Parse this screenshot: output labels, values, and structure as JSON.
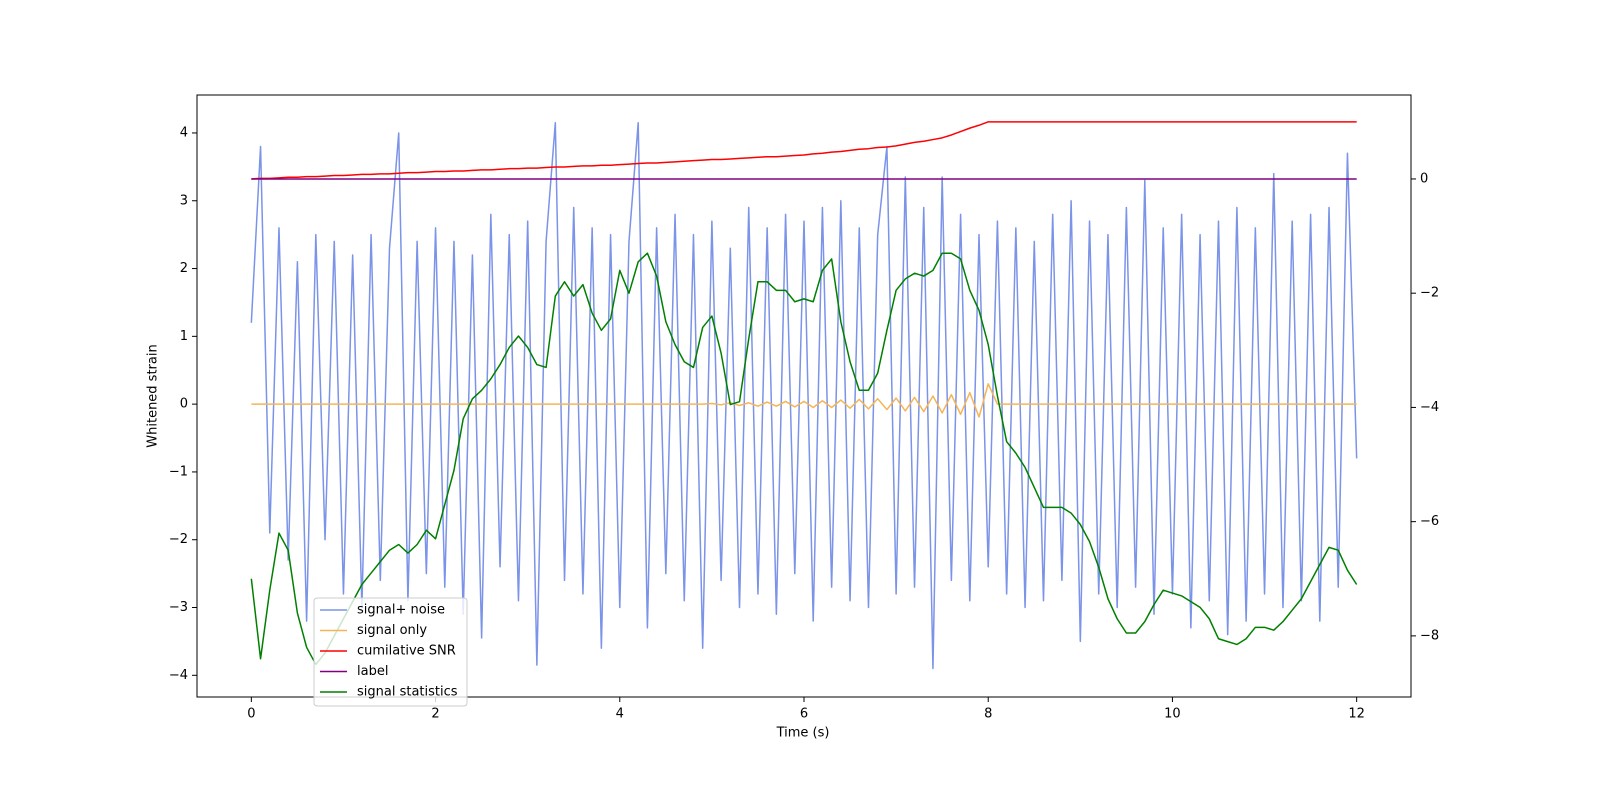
{
  "chart_data": {
    "type": "line",
    "x_label": "Time (s)",
    "y_label": "Whitened strain",
    "xlim": [
      -0.59,
      12.59
    ],
    "ylim": [
      -4.32,
      4.56
    ],
    "y2lim": [
      -9.07,
      1.47
    ],
    "xticks": [
      0,
      2,
      4,
      6,
      8,
      10,
      12
    ],
    "yticks": [
      {
        "value": -4,
        "label": "−4"
      },
      {
        "value": -3,
        "label": "−3"
      },
      {
        "value": -2,
        "label": "−2"
      },
      {
        "value": -1,
        "label": "−1"
      },
      0,
      1,
      2,
      3,
      4
    ],
    "y2ticks": [
      {
        "value": -8,
        "label": "−8"
      },
      {
        "value": -6,
        "label": "−6"
      },
      {
        "value": -4,
        "label": "−4"
      },
      {
        "value": -2,
        "label": "−2"
      },
      0
    ],
    "x": [
      0,
      0.1,
      0.2,
      0.3,
      0.4,
      0.5,
      0.6,
      0.7,
      0.8,
      0.9,
      1,
      1.1,
      1.2,
      1.3,
      1.4,
      1.5,
      1.6,
      1.7,
      1.8,
      1.9,
      2,
      2.1,
      2.2,
      2.3,
      2.4,
      2.5,
      2.6,
      2.7,
      2.8,
      2.9,
      3,
      3.1,
      3.2,
      3.3,
      3.4,
      3.5,
      3.6,
      3.7,
      3.8,
      3.9,
      4,
      4.1,
      4.2,
      4.3,
      4.4,
      4.5,
      4.6,
      4.7,
      4.8,
      4.9,
      5,
      5.1,
      5.2,
      5.3,
      5.4,
      5.5,
      5.6,
      5.7,
      5.8,
      5.9,
      6,
      6.1,
      6.2,
      6.3,
      6.4,
      6.5,
      6.6,
      6.7,
      6.8,
      6.9,
      7,
      7.1,
      7.2,
      7.3,
      7.4,
      7.5,
      7.6,
      7.7,
      7.8,
      7.9,
      8,
      8.1,
      8.2,
      8.3,
      8.4,
      8.5,
      8.6,
      8.7,
      8.8,
      8.9,
      9,
      9.1,
      9.2,
      9.3,
      9.4,
      9.5,
      9.6,
      9.7,
      9.8,
      9.9,
      10,
      10.1,
      10.2,
      10.3,
      10.4,
      10.5,
      10.6,
      10.7,
      10.8,
      10.9,
      11,
      11.1,
      11.2,
      11.3,
      11.4,
      11.5,
      11.6,
      11.7,
      11.8,
      11.9,
      12
    ],
    "series": [
      {
        "name": "signal+ noise",
        "color": "#7b93e8",
        "values": [
          1.2,
          3.8,
          -1.9,
          2.6,
          -2.3,
          2.1,
          -3.2,
          2.5,
          -2.0,
          2.4,
          -2.8,
          2.2,
          -3.0,
          2.5,
          -2.6,
          2.3,
          4.0,
          -2.9,
          2.4,
          -2.5,
          2.6,
          -2.7,
          2.4,
          -3.1,
          2.2,
          -3.45,
          2.8,
          -2.4,
          2.5,
          -2.9,
          2.7,
          -3.85,
          2.4,
          4.15,
          -2.6,
          2.9,
          -2.8,
          2.6,
          -3.6,
          2.5,
          -3.0,
          2.4,
          4.15,
          -3.3,
          2.6,
          -2.5,
          2.8,
          -2.9,
          2.5,
          -3.6,
          2.7,
          -2.6,
          2.3,
          -3.0,
          2.9,
          -2.8,
          2.6,
          -3.1,
          2.8,
          -2.5,
          2.7,
          -3.2,
          2.9,
          -2.7,
          3.0,
          -2.9,
          2.6,
          -3.0,
          2.5,
          3.8,
          -2.8,
          3.35,
          -2.7,
          2.9,
          -3.9,
          3.35,
          -2.6,
          2.8,
          -2.9,
          2.5,
          -2.4,
          2.7,
          -2.8,
          2.6,
          -3.0,
          2.4,
          -2.9,
          2.8,
          -2.6,
          3.0,
          -3.5,
          2.7,
          -2.8,
          2.5,
          -3.0,
          2.9,
          -2.7,
          3.3,
          -3.1,
          2.6,
          -2.8,
          2.8,
          -3.3,
          2.5,
          -2.9,
          2.7,
          -3.4,
          2.9,
          -3.2,
          2.6,
          -2.8,
          3.4,
          -3.0,
          2.7,
          -2.9,
          2.8,
          -3.2,
          2.9,
          -2.7,
          3.7,
          -0.8
        ]
      },
      {
        "name": "signal only",
        "color": "#f5b556",
        "values": [
          0,
          0,
          0,
          0,
          0,
          0,
          0,
          0,
          0,
          0,
          0,
          0,
          0,
          0,
          0,
          0,
          0,
          0,
          0,
          0,
          0,
          0,
          0,
          0,
          0,
          0,
          0,
          0,
          0,
          0,
          0,
          0,
          0,
          0,
          0,
          0,
          0,
          0,
          0,
          0,
          0,
          0,
          0,
          0,
          0,
          0,
          0,
          0,
          0,
          0,
          0.01,
          -0.01,
          0.02,
          -0.02,
          0.02,
          -0.03,
          0.03,
          -0.03,
          0.04,
          -0.04,
          0.04,
          -0.05,
          0.05,
          -0.05,
          0.06,
          -0.06,
          0.07,
          -0.07,
          0.08,
          -0.08,
          0.09,
          -0.1,
          0.1,
          -0.11,
          0.12,
          -0.13,
          0.14,
          -0.15,
          0.17,
          -0.19,
          0.3,
          0,
          0,
          0,
          0,
          0,
          0,
          0,
          0,
          0,
          0,
          0,
          0,
          0,
          0,
          0,
          0,
          0,
          0,
          0,
          0,
          0,
          0,
          0,
          0,
          0,
          0,
          0,
          0,
          0,
          0,
          0,
          0,
          0,
          0,
          0,
          0,
          0,
          0,
          0,
          0
        ]
      },
      {
        "name": "cumilative SNR",
        "color": "#ff0000",
        "axis": "y2",
        "values": [
          0,
          0.01,
          0.01,
          0.02,
          0.03,
          0.03,
          0.04,
          0.04,
          0.05,
          0.06,
          0.06,
          0.07,
          0.08,
          0.08,
          0.09,
          0.09,
          0.1,
          0.11,
          0.11,
          0.12,
          0.13,
          0.13,
          0.14,
          0.14,
          0.15,
          0.16,
          0.16,
          0.17,
          0.18,
          0.18,
          0.19,
          0.19,
          0.2,
          0.21,
          0.21,
          0.22,
          0.23,
          0.23,
          0.24,
          0.24,
          0.25,
          0.26,
          0.27,
          0.28,
          0.28,
          0.29,
          0.3,
          0.31,
          0.32,
          0.33,
          0.34,
          0.34,
          0.35,
          0.36,
          0.37,
          0.38,
          0.39,
          0.39,
          0.4,
          0.41,
          0.42,
          0.44,
          0.45,
          0.47,
          0.48,
          0.5,
          0.52,
          0.53,
          0.55,
          0.56,
          0.58,
          0.61,
          0.64,
          0.66,
          0.69,
          0.72,
          0.77,
          0.83,
          0.89,
          0.94,
          1.0,
          1.0,
          1.0,
          1.0,
          1.0,
          1.0,
          1.0,
          1.0,
          1.0,
          1.0,
          1.0,
          1.0,
          1.0,
          1.0,
          1.0,
          1.0,
          1.0,
          1.0,
          1.0,
          1.0,
          1.0,
          1.0,
          1.0,
          1.0,
          1.0,
          1.0,
          1.0,
          1.0,
          1.0,
          1.0,
          1.0,
          1.0,
          1.0,
          1.0,
          1.0,
          1.0,
          1.0,
          1.0,
          1.0,
          1.0,
          1.0
        ]
      },
      {
        "name": "label",
        "color": "#800080",
        "axis": "y2",
        "values": [
          0,
          0,
          0,
          0,
          0,
          0,
          0,
          0,
          0,
          0,
          0,
          0,
          0,
          0,
          0,
          0,
          0,
          0,
          0,
          0,
          0,
          0,
          0,
          0,
          0,
          0,
          0,
          0,
          0,
          0,
          0,
          0,
          0,
          0,
          0,
          0,
          0,
          0,
          0,
          0,
          0,
          0,
          0,
          0,
          0,
          0,
          0,
          0,
          0,
          0,
          0,
          0,
          0,
          0,
          0,
          0,
          0,
          0,
          0,
          0,
          0,
          0,
          0,
          0,
          0,
          0,
          0,
          0,
          0,
          0,
          0,
          0,
          0,
          0,
          0,
          0,
          0,
          0,
          0,
          0,
          0,
          0,
          0,
          0,
          0,
          0,
          0,
          0,
          0,
          0,
          0,
          0,
          0,
          0,
          0,
          0,
          0,
          0,
          0,
          0,
          0,
          0,
          0,
          0,
          0,
          0,
          0,
          0,
          0,
          0,
          0,
          0,
          0,
          0,
          0,
          0,
          0,
          0,
          0,
          0,
          0
        ]
      },
      {
        "name": "signal statistics",
        "color": "#008000",
        "axis": "y2",
        "values": [
          -7.0,
          -8.4,
          -7.2,
          -6.2,
          -6.5,
          -7.6,
          -8.2,
          -8.5,
          -8.3,
          -8.0,
          -7.7,
          -7.4,
          -7.1,
          -6.9,
          -6.7,
          -6.5,
          -6.4,
          -6.55,
          -6.4,
          -6.15,
          -6.3,
          -5.7,
          -5.1,
          -4.2,
          -3.85,
          -3.7,
          -3.5,
          -3.25,
          -2.95,
          -2.75,
          -2.95,
          -3.25,
          -3.3,
          -2.05,
          -1.8,
          -2.05,
          -1.85,
          -2.35,
          -2.65,
          -2.45,
          -1.6,
          -2.0,
          -1.45,
          -1.3,
          -1.7,
          -2.5,
          -2.9,
          -3.2,
          -3.3,
          -2.6,
          -2.4,
          -3.05,
          -3.95,
          -3.9,
          -2.8,
          -1.8,
          -1.8,
          -1.95,
          -1.95,
          -2.15,
          -2.1,
          -2.15,
          -1.6,
          -1.4,
          -2.5,
          -3.2,
          -3.7,
          -3.7,
          -3.4,
          -2.65,
          -1.95,
          -1.75,
          -1.65,
          -1.7,
          -1.6,
          -1.3,
          -1.3,
          -1.4,
          -1.95,
          -2.3,
          -2.9,
          -3.8,
          -4.6,
          -4.8,
          -5.05,
          -5.4,
          -5.75,
          -5.75,
          -5.75,
          -5.85,
          -6.05,
          -6.35,
          -6.8,
          -7.35,
          -7.7,
          -7.95,
          -7.95,
          -7.75,
          -7.45,
          -7.2,
          -7.25,
          -7.3,
          -7.4,
          -7.5,
          -7.7,
          -8.05,
          -8.1,
          -8.15,
          -8.05,
          -7.85,
          -7.85,
          -7.9,
          -7.75,
          -7.55,
          -7.35,
          -7.05,
          -6.75,
          -6.45,
          -6.5,
          -6.85,
          -7.1
        ]
      }
    ]
  }
}
